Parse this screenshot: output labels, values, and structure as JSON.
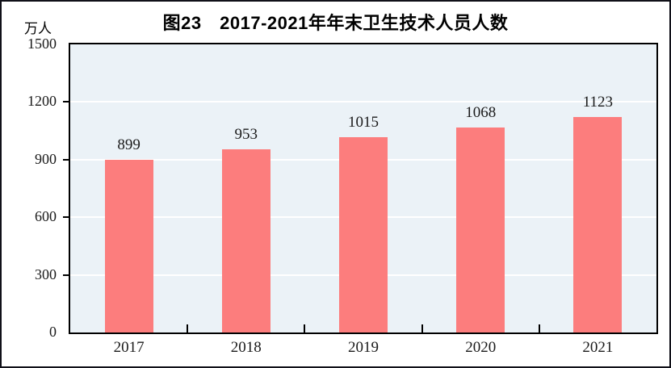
{
  "figure": {
    "title": "图23　2017-2021年年末卫生技术人员人数",
    "unit_label": "万人"
  },
  "chart_data": {
    "type": "bar",
    "title": "图23　2017-2021年年末卫生技术人员人数",
    "xlabel": "",
    "ylabel": "万人",
    "categories": [
      "2017",
      "2018",
      "2019",
      "2020",
      "2021"
    ],
    "values": [
      899,
      953,
      1015,
      1068,
      1123
    ],
    "yticks": [
      0,
      300,
      600,
      900,
      1200,
      1500
    ],
    "ylim": [
      0,
      1500
    ],
    "grid": true,
    "legend_position": "none",
    "colors": {
      "bar": "#FC7D7D",
      "plot_background": "#EBF2F7",
      "gridline": "#FFFFFF",
      "axis": "#000000",
      "text": "#1a1a1a"
    }
  }
}
